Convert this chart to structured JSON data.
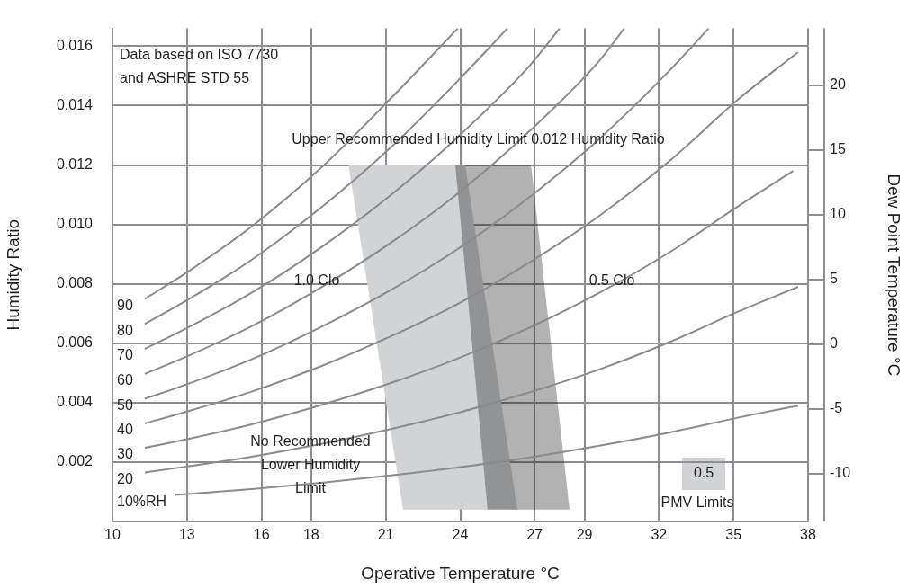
{
  "chart_data": {
    "type": "line",
    "xlabel": "Operative Temperature °C",
    "ylabel": "Humidity Ratio",
    "y2label": "Dew Point Temperature °C",
    "xlim": [
      10,
      38
    ],
    "xticks": [
      10,
      13,
      16,
      18,
      21,
      24,
      27,
      29,
      32,
      35,
      38
    ],
    "ylim": [
      0,
      0.0166
    ],
    "yticks": [
      0.002,
      0.004,
      0.006,
      0.008,
      {
        "value": 0.01,
        "label": "0.010"
      },
      0.012,
      0.014,
      0.016
    ],
    "y2lim": [
      -13.7,
      24.4
    ],
    "y2ticks": [
      -10,
      -5,
      0,
      5,
      10,
      15,
      20
    ],
    "grid": true,
    "legend": false,
    "series": [
      {
        "type": "area",
        "color": "#d1d3d4",
        "x": [
          19.5,
          24.2,
          26.3,
          21.7,
          19.5
        ],
        "values": [
          0.012,
          0.012,
          0.0004,
          0.0004,
          0.012
        ]
      },
      {
        "type": "area",
        "color": "#b1b2b4",
        "x": [
          23.8,
          26.85,
          28.4,
          25.1,
          23.8
        ],
        "values": [
          0.012,
          0.012,
          0.0004,
          0.0004,
          0.012
        ]
      },
      {
        "name": "90",
        "color": "#8a8b8e",
        "x": [
          11.3,
          13,
          15.6,
          18.4,
          21.2,
          23.9
        ],
        "values": [
          0.00749,
          0.00839,
          0.00993,
          0.01191,
          0.01424,
          0.0166
        ]
      },
      {
        "name": "80",
        "color": "#8a8b8e",
        "x": [
          11.3,
          13,
          15.6,
          18.4,
          21.2,
          24,
          25.9
        ],
        "values": [
          0.00665,
          0.00745,
          0.00881,
          0.01057,
          0.01259,
          0.01492,
          0.0166
        ]
      },
      {
        "name": "70",
        "color": "#8a8b8e",
        "x": [
          11.3,
          13,
          15.6,
          18.4,
          21.2,
          24,
          26.8,
          28
        ],
        "values": [
          0.00581,
          0.00651,
          0.0077,
          0.00923,
          0.01099,
          0.01302,
          0.01535,
          0.0166
        ]
      },
      {
        "name": "60",
        "color": "#8a8b8e",
        "x": [
          11.3,
          13,
          15.6,
          18.4,
          21.2,
          24,
          26.8,
          29.6,
          30.6
        ],
        "values": [
          0.00497,
          0.00556,
          0.00657,
          0.00788,
          0.00938,
          0.01111,
          0.01315,
          0.01551,
          0.0166
        ]
      },
      {
        "name": "50",
        "color": "#8a8b8e",
        "x": [
          11.3,
          13,
          15.6,
          18.4,
          21.2,
          24,
          26.8,
          29.6,
          32.4,
          34
        ],
        "values": [
          0.00413,
          0.00462,
          0.00546,
          0.00655,
          0.00779,
          0.00923,
          0.01093,
          0.01288,
          0.01516,
          0.0166
        ]
      },
      {
        "name": "40",
        "color": "#8a8b8e",
        "x": [
          11.3,
          13,
          15.6,
          18.4,
          21.2,
          24,
          26.8,
          29.6,
          32.4,
          35.2,
          37.6
        ],
        "values": [
          0.0033,
          0.0037,
          0.00437,
          0.00523,
          0.00623,
          0.00737,
          0.00873,
          0.01029,
          0.01212,
          0.01422,
          0.0158
        ]
      },
      {
        "name": "30",
        "color": "#8a8b8e",
        "x": [
          11.3,
          13,
          15.6,
          18.4,
          21.2,
          24,
          26.8,
          29.6,
          32.4,
          35.2,
          37.4
        ],
        "values": [
          0.00248,
          0.00277,
          0.00327,
          0.00392,
          0.00466,
          0.00552,
          0.00653,
          0.0077,
          0.00905,
          0.01062,
          0.0118
        ]
      },
      {
        "name": "20",
        "color": "#8a8b8e",
        "x": [
          11.3,
          13,
          15.6,
          18.4,
          21.2,
          24,
          26.8,
          29.6,
          32.4,
          35.2,
          37.6
        ],
        "values": [
          0.00165,
          0.00185,
          0.00218,
          0.00261,
          0.00311,
          0.00368,
          0.00435,
          0.00512,
          0.00603,
          0.00707,
          0.0079
        ]
      },
      {
        "name": "10%RH",
        "color": "#8a8b8e",
        "x": [
          12.5,
          15.6,
          18.4,
          21.2,
          24,
          26.8,
          29.6,
          32.4,
          35.2,
          37.6
        ],
        "values": [
          0.00089,
          0.00109,
          0.0013,
          0.00155,
          0.00183,
          0.00216,
          0.00255,
          0.00299,
          0.0035,
          0.0039
        ]
      }
    ],
    "annotations": [
      "Data based on ISO 7730\nand ASHRE STD 55",
      "No Recommended\nLower Humidity\nLimit",
      "1.0 Clo",
      "0.5 Clo",
      "0.5",
      "PMV Limits",
      "Upper Recommended Humidity Limit 0.012 Humidity Ratio"
    ]
  }
}
